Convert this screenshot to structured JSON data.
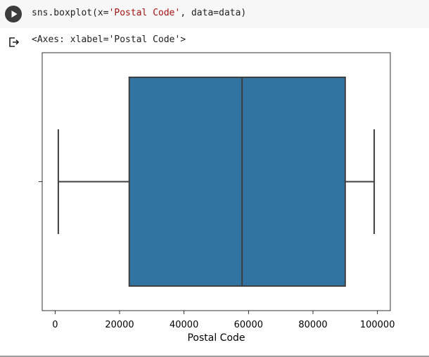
{
  "cell": {
    "code_prefix": "sns.boxplot(x=",
    "code_string": "'Postal Code'",
    "code_suffix": ", data=data)"
  },
  "output": {
    "text": "<Axes: xlabel='Postal Code'>"
  },
  "chart_data": {
    "type": "boxplot",
    "orientation": "horizontal",
    "xlabel": "Postal Code",
    "ylabel": "",
    "title": "",
    "xlim": [
      -4000,
      104000
    ],
    "ticks": [
      0,
      20000,
      40000,
      60000,
      80000,
      100000
    ],
    "tick_labels": [
      "0",
      "20000",
      "40000",
      "60000",
      "80000",
      "100000"
    ],
    "box": {
      "whisker_low": 1000,
      "q1": 23000,
      "median": 58000,
      "q3": 90000,
      "whisker_high": 99000
    },
    "colors": {
      "box_fill": "#3274a1",
      "line": "#3f3f3f"
    }
  }
}
